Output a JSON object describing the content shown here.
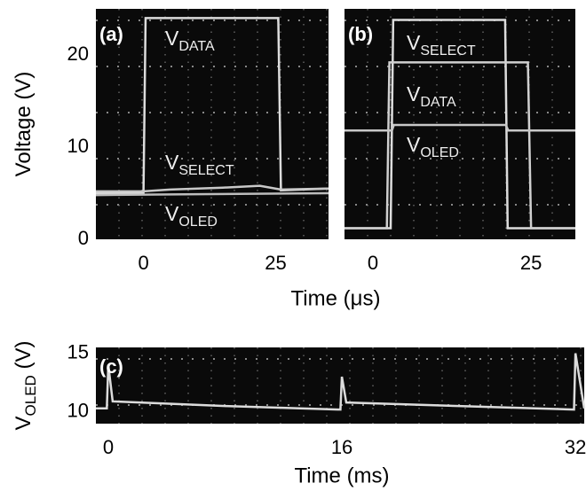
{
  "chart_data": [
    {
      "type": "line",
      "panel_label": "(a)",
      "ylabel": "Voltage (V)",
      "xlabel": "Time (μs)",
      "xlim": [
        -9,
        35
      ],
      "ylim": [
        0,
        25
      ],
      "xticks": [
        0,
        25
      ],
      "yticks": [
        0,
        10,
        20
      ],
      "series": [
        {
          "label": "V",
          "label_sub": "DATA",
          "color": "#dcdcdc",
          "x": [
            -9,
            0,
            0.4,
            25.5,
            26,
            35
          ],
          "values": [
            5,
            5,
            24,
            24,
            5.3,
            5.5
          ]
        },
        {
          "label": "V",
          "label_sub": "SELECT",
          "color": "#c8c8c8",
          "x": [
            -9,
            0,
            5,
            15,
            22,
            26,
            35
          ],
          "values": [
            5.2,
            5.2,
            5.4,
            5.6,
            5.8,
            5.4,
            5.5
          ]
        },
        {
          "label": "V",
          "label_sub": "OLED",
          "color": "#bdbdbd",
          "x": [
            -9,
            35
          ],
          "values": [
            4.8,
            5
          ]
        }
      ]
    },
    {
      "type": "line",
      "panel_label": "(b)",
      "xlim": [
        -4.5,
        32
      ],
      "ylim": [
        0,
        25
      ],
      "xticks": [
        0,
        25
      ],
      "series": [
        {
          "label": "V",
          "label_sub": "SELECT",
          "color": "#dcdcdc",
          "x": [
            -4.5,
            2.8,
            3.2,
            20.9,
            21.3,
            32
          ],
          "values": [
            1.2,
            1.2,
            23.8,
            23.8,
            1.2,
            1.2
          ]
        },
        {
          "label": "V",
          "label_sub": "DATA",
          "color": "#d0d0d0",
          "x": [
            -4.5,
            2.2,
            2.6,
            24.5,
            25,
            32
          ],
          "values": [
            1.2,
            1.2,
            19.2,
            19.2,
            1.2,
            1.2
          ]
        },
        {
          "label": "V",
          "label_sub": "OLED",
          "color": "#c8c8c8",
          "x": [
            -4.5,
            3,
            3.3,
            21,
            21.4,
            32
          ],
          "values": [
            11.8,
            11.8,
            12.4,
            12.4,
            11.8,
            11.8
          ]
        }
      ]
    },
    {
      "type": "line",
      "panel_label": "(c)",
      "ylabel": "V",
      "ylabel_sub": "OLED",
      "ylabel_unit": "(V)",
      "xlabel": "Time (ms)",
      "xlim": [
        -0.85,
        32.6
      ],
      "ylim": [
        9,
        15.5
      ],
      "xticks": [
        0,
        16,
        32
      ],
      "yticks": [
        10,
        15
      ],
      "series": [
        {
          "color": "#dcdcdc",
          "x": [
            -0.85,
            -0.1,
            0,
            0.3,
            8,
            15.9,
            16,
            16.3,
            24,
            31.9,
            32,
            32.6
          ],
          "values": [
            10.3,
            10.3,
            14,
            10.9,
            10.5,
            10.2,
            13,
            10.8,
            10.5,
            10.2,
            15,
            10.3
          ]
        }
      ]
    }
  ]
}
